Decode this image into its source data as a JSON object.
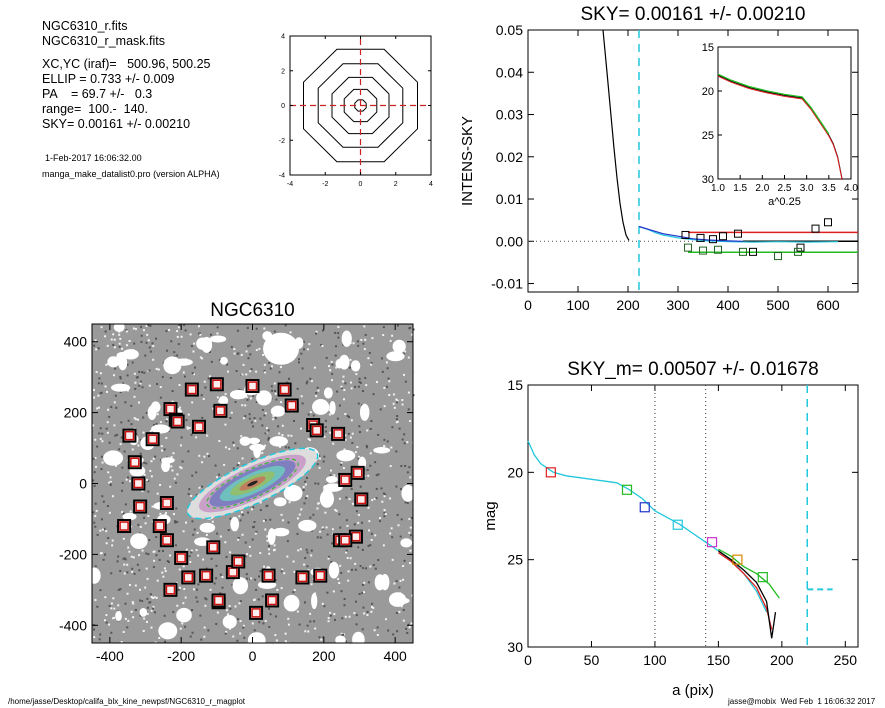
{
  "info_panel": {
    "lines": [
      "NGC6310_r.fits",
      "NGC6310_r_mask.fits",
      "XC,YC (iraf)=   500.96, 500.25",
      "ELLIP = 0.733 +/- 0.009",
      "PA    = 69.7 +/-   0.3",
      "range=  100.-  140.",
      "SKY= 0.00161 +/- 0.00210"
    ],
    "date": "1-Feb-2017 16:06:32.00",
    "program": "manga_make_datalist0.pro (version ALPHA)"
  },
  "footer": {
    "left": "/home/jasse/Desktop/califa_blx_kine_newpsf/NGC6310_r_magplot",
    "right": "jasse@mobix  Wed Feb  1 16:06:32 2017"
  },
  "colors": {
    "cyan": "#22c8dd",
    "red": "#e02020",
    "green": "#22bb22",
    "blue": "#2233cc",
    "magenta": "#cc33cc",
    "orange": "#dd8800",
    "mask_red": "#cc1111"
  },
  "chart_data": [
    {
      "id": "contour",
      "type": "contour",
      "xlim": [
        -4,
        4
      ],
      "ylim": [
        -4,
        4
      ],
      "xticks": [
        -4,
        -2,
        0,
        2,
        4
      ],
      "yticks": [
        -4,
        -2,
        0,
        2,
        4
      ],
      "tick_labels_x": [
        "-4",
        "-2",
        "0",
        "2",
        "4"
      ],
      "tick_labels_y": [
        "-4",
        "-2",
        "0",
        "2",
        "4"
      ],
      "levels_radius": [
        0.35,
        1.0,
        1.75,
        2.6,
        3.5
      ],
      "crosshair": {
        "x": 0,
        "y": 0
      }
    },
    {
      "id": "sky",
      "type": "line",
      "title": "SKY= 0.00161 +/- 0.00210",
      "ylabel": "INTENS-SKY",
      "xlabel": "",
      "xlim": [
        0,
        660
      ],
      "ylim": [
        -0.012,
        0.05
      ],
      "xticks": [
        0,
        100,
        200,
        300,
        400,
        500,
        600
      ],
      "yticks": [
        -0.01,
        0.0,
        0.01,
        0.02,
        0.03,
        0.04,
        0.05
      ],
      "xtick_labels": [
        "0",
        "100",
        "200",
        "300",
        "400",
        "500",
        "600"
      ],
      "ytick_labels": [
        "-0.01",
        "0.00",
        "0.01",
        "0.02",
        "0.03",
        "0.04",
        "0.05"
      ],
      "vline": 222,
      "hlines": [
        {
          "y": 0.0,
          "style": "dotted",
          "color": "gray"
        },
        {
          "y": 0.0,
          "style": "solid",
          "color": "black",
          "x0": 430,
          "x1": 660
        },
        {
          "y": 0.0021,
          "style": "solid",
          "color": "red",
          "x0": 320,
          "x1": 660
        },
        {
          "y": -0.0026,
          "style": "solid",
          "color": "green",
          "x0": 320,
          "x1": 660
        }
      ],
      "series": [
        {
          "color": "black",
          "x": [
            150,
            158,
            165,
            172,
            178,
            184,
            190,
            196,
            202
          ],
          "y": [
            0.05,
            0.04,
            0.031,
            0.022,
            0.015,
            0.009,
            0.0045,
            0.0015,
            0.0002
          ]
        },
        {
          "color": "cyan",
          "x": [
            222,
            240,
            255,
            270,
            300,
            330,
            360,
            400,
            450,
            500,
            560,
            620
          ],
          "y": [
            0.0035,
            0.0028,
            0.002,
            0.0015,
            0.0008,
            0.0004,
            0.0001,
            -0.0001,
            -0.0002,
            -0.0001,
            -0.0002,
            -0.0001
          ]
        },
        {
          "color": "blue",
          "x": [
            222,
            245,
            270,
            300,
            330,
            360,
            400,
            430
          ],
          "y": [
            0.0035,
            0.0027,
            0.0018,
            0.0012,
            0.0006,
            0.0003,
            0.0001,
            0.0
          ]
        }
      ],
      "points_black": {
        "x": [
          315,
          345,
          370,
          390,
          420,
          450,
          545,
          575,
          600
        ],
        "y": [
          0.0015,
          0.0008,
          0.0005,
          0.0012,
          0.0018,
          -0.0025,
          -0.0015,
          0.003,
          0.0045
        ]
      },
      "points_green": {
        "x": [
          320,
          350,
          380,
          430,
          500,
          540
        ],
        "y": [
          -0.0015,
          -0.0022,
          -0.002,
          -0.0025,
          -0.0035,
          -0.0025
        ]
      },
      "inset": {
        "xlabel": "a^0.25",
        "xlim": [
          1.0,
          4.0
        ],
        "ylim": [
          15,
          30
        ],
        "xtick_labels": [
          "1.0",
          "1.5",
          "2.0",
          "2.5",
          "3.0",
          "3.5",
          "4.0"
        ],
        "ytick_labels": [
          "15",
          "20",
          "25",
          "30"
        ],
        "curve": {
          "x": [
            1.0,
            1.3,
            1.7,
            2.1,
            2.5,
            2.9,
            3.1,
            3.3,
            3.5,
            3.6,
            3.7,
            3.8
          ],
          "y": [
            18.2,
            18.9,
            19.6,
            20.1,
            20.5,
            20.8,
            22.0,
            23.5,
            25.0,
            26.0,
            27.5,
            30.0
          ]
        }
      }
    },
    {
      "id": "image",
      "type": "image",
      "title": "NGC6310",
      "xlim": [
        -450,
        450
      ],
      "ylim": [
        -450,
        450
      ],
      "xtick_labels": [
        "-400",
        "-200",
        "0",
        "200",
        "400"
      ],
      "ytick_labels": [
        "-400",
        "-200",
        "0",
        "200",
        "400"
      ],
      "galaxy": {
        "pa_deg": 25,
        "a_max": 200,
        "b_ratio": 0.28
      },
      "mask_boxes": [
        [
          -360,
          -120
        ],
        [
          -345,
          135
        ],
        [
          -330,
          60
        ],
        [
          -320,
          0
        ],
        [
          -315,
          -65
        ],
        [
          -280,
          125
        ],
        [
          -260,
          -120
        ],
        [
          -240,
          -160
        ],
        [
          -240,
          -55
        ],
        [
          -230,
          210
        ],
        [
          -215,
          180
        ],
        [
          -200,
          -210
        ],
        [
          -180,
          -265
        ],
        [
          -170,
          265
        ],
        [
          -150,
          160
        ],
        [
          -130,
          -260
        ],
        [
          -110,
          -180
        ],
        [
          -100,
          280
        ],
        [
          -95,
          -335
        ],
        [
          -90,
          205
        ],
        [
          -55,
          -250
        ],
        [
          -40,
          -220
        ],
        [
          0,
          275
        ],
        [
          10,
          -365
        ],
        [
          45,
          -260
        ],
        [
          55,
          -330
        ],
        [
          90,
          265
        ],
        [
          110,
          220
        ],
        [
          140,
          -265
        ],
        [
          170,
          165
        ],
        [
          180,
          150
        ],
        [
          190,
          -260
        ],
        [
          240,
          140
        ],
        [
          245,
          -160
        ],
        [
          260,
          10
        ],
        [
          290,
          -150
        ],
        [
          295,
          30
        ],
        [
          305,
          -45
        ],
        [
          260,
          -160
        ],
        [
          -230,
          -300
        ],
        [
          -210,
          175
        ],
        [
          -95,
          -330
        ]
      ]
    },
    {
      "id": "mag",
      "type": "line",
      "title": "SKY_m=  0.00507 +/- 0.01678",
      "xlabel": "a (pix)",
      "ylabel": "mag",
      "xlim": [
        0,
        260
      ],
      "ylim": [
        15,
        30
      ],
      "xtick_labels": [
        "0",
        "50",
        "100",
        "150",
        "200",
        "250"
      ],
      "ytick_labels": [
        "15",
        "20",
        "25",
        "30"
      ],
      "vlines_dotted": [
        100,
        140
      ],
      "vline_dashed": 220,
      "series": [
        {
          "name": "",
          "color": "cyan",
          "x": [
            0,
            5,
            10,
            20,
            30,
            50,
            70,
            80,
            90,
            100,
            110,
            120,
            130,
            140,
            150,
            160,
            170,
            180,
            188
          ],
          "y": [
            18.2,
            19.0,
            19.5,
            20.0,
            20.2,
            20.4,
            20.6,
            21.0,
            21.5,
            22.2,
            22.6,
            23.0,
            23.5,
            24.0,
            24.5,
            25.0,
            25.8,
            26.8,
            28.0
          ]
        },
        {
          "name": "",
          "color": "green",
          "x": [
            150,
            160,
            170,
            180,
            190,
            198
          ],
          "y": [
            24.4,
            24.8,
            25.4,
            25.8,
            26.4,
            27.2
          ]
        },
        {
          "name": "",
          "color": "red",
          "x": [
            150,
            160,
            170,
            180,
            188,
            192
          ],
          "y": [
            24.6,
            25.1,
            25.8,
            26.6,
            27.8,
            29.0
          ]
        },
        {
          "name": "",
          "color": "black",
          "x": [
            150,
            160,
            170,
            180,
            188,
            192,
            195
          ],
          "y": [
            24.5,
            25.0,
            25.6,
            26.3,
            27.4,
            29.5,
            28.0
          ]
        }
      ],
      "squares": [
        {
          "x": 18,
          "y": 20.0,
          "color": "red"
        },
        {
          "x": 78,
          "y": 21.0,
          "color": "green"
        },
        {
          "x": 92,
          "y": 22.0,
          "color": "blue"
        },
        {
          "x": 118,
          "y": 23.0,
          "color": "cyan"
        },
        {
          "x": 145,
          "y": 24.0,
          "color": "magenta"
        },
        {
          "x": 165,
          "y": 25.0,
          "color": "orange"
        },
        {
          "x": 185,
          "y": 26.0,
          "color": "green"
        }
      ],
      "sky_dash": {
        "x0": 220,
        "x1": 240,
        "y": 26.7
      }
    }
  ]
}
